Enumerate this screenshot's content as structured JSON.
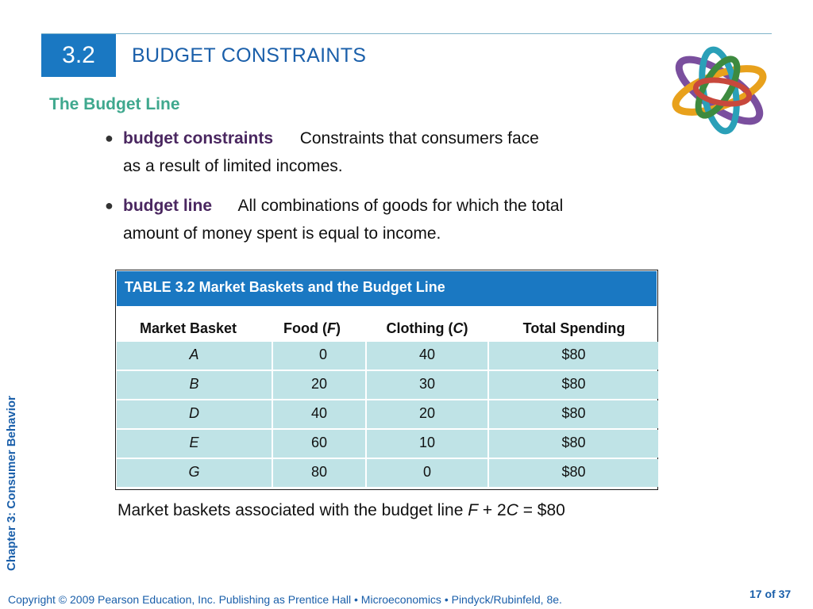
{
  "header": {
    "section_number": "3.2",
    "section_title": "BUDGET CONSTRAINTS"
  },
  "subtitle": "The Budget Line",
  "side_label": "Chapter 3:  Consumer Behavior",
  "bullets": [
    {
      "term": "budget constraints",
      "definition_line1": "Constraints that consumers face",
      "definition_line2": "as a result of limited incomes."
    },
    {
      "term": "budget line",
      "definition_line1": "All combinations of goods for which the total",
      "definition_line2": "amount of money spent is equal to income."
    }
  ],
  "table": {
    "title": "TABLE 3.2  Market Baskets and the Budget Line",
    "headers": {
      "basket": "Market Basket",
      "food_prefix": "Food (",
      "food_var": "F",
      "food_suffix": ")",
      "clothing_prefix": "Clothing (",
      "clothing_var": "C",
      "clothing_suffix": ")",
      "total": "Total Spending"
    },
    "rows": [
      {
        "basket": "A",
        "food": "0",
        "clothing": "40",
        "total": "$80"
      },
      {
        "basket": "B",
        "food": "20",
        "clothing": "30",
        "total": "$80"
      },
      {
        "basket": "D",
        "food": "40",
        "clothing": "20",
        "total": "$80"
      },
      {
        "basket": "E",
        "food": "60",
        "clothing": "10",
        "total": "$80"
      },
      {
        "basket": "G",
        "food": "80",
        "clothing": "0",
        "total": "$80"
      }
    ]
  },
  "caption": {
    "prefix": "Market baskets associated with the budget line ",
    "var_f": "F",
    "plus": " + 2",
    "var_c": "C",
    "suffix": " = $80"
  },
  "footer": "Copyright © 2009 Pearson Education, Inc. Publishing as Prentice Hall  •  Microeconomics  •  Pindyck/Rubinfeld, 8e.",
  "page_indicator": "17 of 37",
  "colors": {
    "accent_blue": "#1a78c2",
    "title_blue": "#1a5faa",
    "subtitle_green": "#3fa88e",
    "term_purple": "#4a2760",
    "cell_teal": "#bfe3e6"
  },
  "icons": {
    "logo": "interlocking-rings-logo"
  }
}
